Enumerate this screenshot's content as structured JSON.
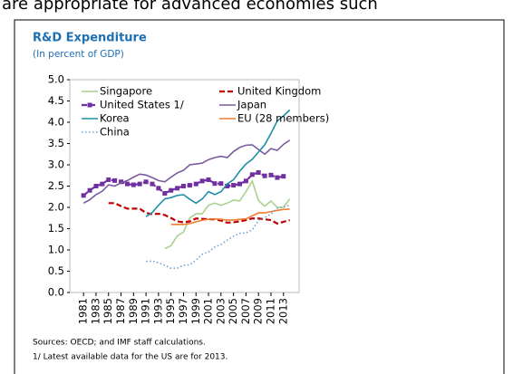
{
  "context_text": "are appropriate for advanced economies such",
  "chart_data": {
    "type": "line",
    "title": "R&D Expenditure",
    "subtitle": "(In percent of GDP)",
    "x": [
      1981,
      1982,
      1983,
      1984,
      1985,
      1986,
      1987,
      1988,
      1989,
      1990,
      1991,
      1992,
      1993,
      1994,
      1995,
      1996,
      1997,
      1998,
      1999,
      2000,
      2001,
      2002,
      2003,
      2004,
      2005,
      2006,
      2007,
      2008,
      2009,
      2010,
      2011,
      2012,
      2013,
      2014
    ],
    "xlim": [
      1978.8,
      2015.5
    ],
    "xticks": [
      1981,
      1983,
      1985,
      1987,
      1989,
      1991,
      1993,
      1995,
      1997,
      1999,
      2001,
      2003,
      2005,
      2007,
      2009,
      2011,
      2013
    ],
    "ylim": [
      0,
      5
    ],
    "yticks": [
      {
        "value": 0,
        "label": "0.0"
      },
      0.5,
      {
        "value": 1,
        "label": "1.0"
      },
      1.5,
      {
        "value": 2,
        "label": "2.0"
      },
      2.5,
      {
        "value": 3,
        "label": "3.0"
      },
      3.5,
      {
        "value": 4,
        "label": "4.0"
      },
      4.5,
      {
        "value": 5,
        "label": "5.0"
      }
    ],
    "series": [
      {
        "name": "Singapore",
        "color": "#a9d18e",
        "dash": "solid",
        "values": [
          null,
          null,
          null,
          null,
          null,
          null,
          null,
          null,
          null,
          null,
          null,
          null,
          null,
          1.03,
          1.1,
          1.33,
          1.42,
          1.75,
          1.85,
          1.85,
          2.05,
          2.1,
          2.05,
          2.1,
          2.17,
          2.15,
          2.37,
          2.62,
          2.16,
          2.03,
          2.15,
          2.0,
          2.0,
          2.2
        ]
      },
      {
        "name": "United Kingdom",
        "color": "#c00000",
        "dash": "dashed",
        "values": [
          null,
          null,
          null,
          null,
          2.1,
          2.1,
          2.03,
          1.97,
          1.97,
          1.97,
          1.87,
          1.84,
          1.85,
          1.82,
          1.75,
          1.67,
          1.65,
          1.67,
          1.74,
          1.73,
          1.72,
          1.72,
          1.69,
          1.64,
          1.65,
          1.67,
          1.7,
          1.74,
          1.74,
          1.72,
          1.7,
          1.62,
          1.66,
          1.7
        ]
      },
      {
        "name": "United States 1/",
        "color": "#7030a0",
        "dash": "dashed",
        "marker": "square",
        "values": [
          2.28,
          2.4,
          2.5,
          2.55,
          2.65,
          2.63,
          2.6,
          2.55,
          2.53,
          2.55,
          2.6,
          2.55,
          2.45,
          2.33,
          2.4,
          2.45,
          2.5,
          2.52,
          2.55,
          2.62,
          2.65,
          2.56,
          2.56,
          2.5,
          2.52,
          2.55,
          2.62,
          2.77,
          2.82,
          2.74,
          2.76,
          2.7,
          2.73,
          null
        ]
      },
      {
        "name": "Japan",
        "color": "#7a5a9e",
        "dash": "solid",
        "values": [
          2.1,
          2.18,
          2.3,
          2.38,
          2.53,
          2.5,
          2.58,
          2.63,
          2.71,
          2.78,
          2.76,
          2.7,
          2.63,
          2.6,
          2.71,
          2.81,
          2.87,
          3.0,
          3.02,
          3.04,
          3.12,
          3.17,
          3.2,
          3.17,
          3.31,
          3.41,
          3.46,
          3.47,
          3.36,
          3.25,
          3.38,
          3.34,
          3.48,
          3.58
        ]
      },
      {
        "name": "Korea",
        "color": "#1f8fa6",
        "dash": "solid",
        "values": [
          null,
          null,
          null,
          null,
          null,
          null,
          null,
          null,
          null,
          null,
          1.78,
          1.88,
          2.05,
          2.2,
          2.23,
          2.28,
          2.3,
          2.19,
          2.1,
          2.2,
          2.37,
          2.3,
          2.37,
          2.55,
          2.65,
          2.85,
          3.02,
          3.13,
          3.3,
          3.47,
          3.74,
          4.03,
          4.15,
          4.29
        ]
      },
      {
        "name": "EU (28 members)",
        "color": "#ed7d31",
        "dash": "solid",
        "values": [
          null,
          null,
          null,
          null,
          null,
          null,
          null,
          null,
          null,
          null,
          null,
          null,
          null,
          null,
          1.6,
          1.6,
          1.6,
          1.62,
          1.66,
          1.7,
          1.72,
          1.73,
          1.72,
          1.7,
          1.7,
          1.72,
          1.73,
          1.8,
          1.87,
          1.87,
          1.9,
          1.93,
          1.95,
          1.96
        ]
      },
      {
        "name": "China",
        "color": "#6f9fd8",
        "dash": "dotted",
        "values": [
          null,
          null,
          null,
          null,
          null,
          null,
          null,
          null,
          null,
          null,
          0.73,
          0.74,
          0.7,
          0.64,
          0.57,
          0.57,
          0.64,
          0.65,
          0.76,
          0.9,
          0.95,
          1.07,
          1.13,
          1.23,
          1.32,
          1.39,
          1.4,
          1.47,
          1.7,
          1.76,
          1.84,
          1.98,
          2.01,
          2.05
        ]
      }
    ],
    "notes": [
      "Sources: OECD; and IMF staff calculations.",
      "1/ Latest available data for the US are for 2013."
    ]
  }
}
